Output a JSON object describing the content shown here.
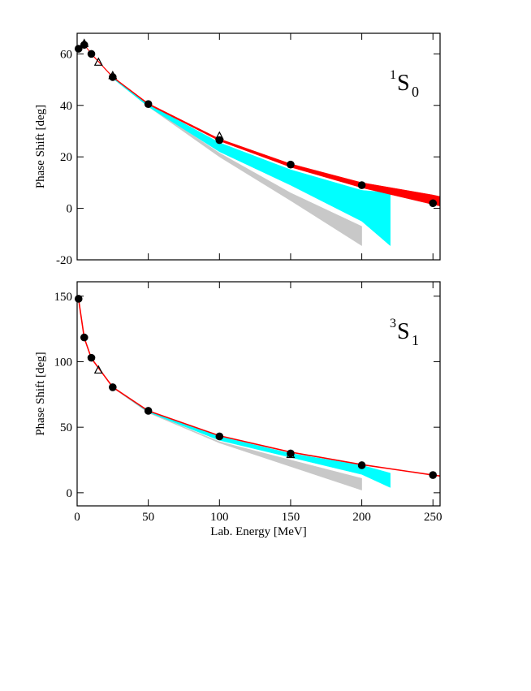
{
  "chart_data": [
    {
      "type": "line",
      "ylabel": "Phase Shift [deg]",
      "annotation_sup": "1",
      "annotation": "S",
      "annotation_sub": "0",
      "xlim": [
        0,
        255
      ],
      "xticks": [
        0,
        50,
        100,
        150,
        200,
        250
      ],
      "show_xtick_labels": false,
      "ylim": [
        -20,
        68
      ],
      "yticks": [
        -20,
        0,
        20,
        40,
        60
      ],
      "series": [
        {
          "kind": "band",
          "color": "#c8c8c8",
          "x": [
            25,
            50,
            100,
            150,
            200
          ],
          "upper": [
            51,
            40,
            21.5,
            6,
            -7
          ],
          "lower": [
            50.5,
            39.5,
            20,
            3,
            -14.5
          ]
        },
        {
          "kind": "band",
          "color": "#00ffff",
          "x": [
            25,
            50,
            100,
            150,
            200,
            220
          ],
          "upper": [
            51,
            40.5,
            25.5,
            15,
            7,
            6
          ],
          "lower": [
            50.5,
            39.5,
            22,
            9,
            -5,
            -14.5
          ]
        },
        {
          "kind": "band",
          "color": "#ff0000",
          "x": [
            1,
            5,
            10,
            25,
            50,
            100,
            150,
            200,
            250,
            255
          ],
          "upper": [
            62.2,
            63.7,
            60.2,
            51.2,
            40.8,
            27,
            17.3,
            10,
            5.2,
            4.6
          ],
          "lower": [
            62,
            63.5,
            59.8,
            50.8,
            40.3,
            26.2,
            16,
            8,
            1.5,
            0.9
          ]
        },
        {
          "kind": "scatter",
          "marker": "triangle",
          "color": "#000000",
          "x": [
            5,
            15,
            25,
            100
          ],
          "values": [
            64,
            56.7,
            51.5,
            28
          ]
        },
        {
          "kind": "scatter",
          "marker": "circle",
          "color": "#000000",
          "x": [
            1,
            5,
            10,
            25,
            50,
            100,
            150,
            200,
            250
          ],
          "values": [
            62,
            63.5,
            60,
            51,
            40.5,
            26.5,
            17,
            9,
            2
          ]
        }
      ]
    },
    {
      "type": "line",
      "ylabel": "Phase Shift [deg]",
      "xlabel": "Lab. Energy [MeV]",
      "annotation_sup": "3",
      "annotation": "S",
      "annotation_sub": "1",
      "xlim": [
        0,
        255
      ],
      "xticks": [
        0,
        50,
        100,
        150,
        200,
        250
      ],
      "show_xtick_labels": true,
      "ylim": [
        -10,
        161
      ],
      "yticks": [
        0,
        50,
        100,
        150
      ],
      "series": [
        {
          "kind": "band",
          "color": "#c8c8c8",
          "x": [
            25,
            50,
            100,
            150,
            200
          ],
          "upper": [
            80.5,
            61.5,
            39,
            25,
            11
          ],
          "lower": [
            80,
            61,
            38,
            20,
            2
          ]
        },
        {
          "kind": "band",
          "color": "#00ffff",
          "x": [
            25,
            50,
            100,
            150,
            200,
            220
          ],
          "upper": [
            80.6,
            62.5,
            43,
            30,
            21,
            15
          ],
          "lower": [
            80.4,
            61.5,
            40,
            27,
            14,
            4
          ]
        },
        {
          "kind": "line",
          "color": "#ff0000",
          "x": [
            1,
            5,
            10,
            25,
            50,
            100,
            150,
            200,
            250,
            255
          ],
          "values": [
            147.7,
            118.2,
            102.6,
            80.6,
            62.5,
            43.5,
            31,
            21.5,
            13.5,
            12.8
          ]
        },
        {
          "kind": "scatter",
          "marker": "triangle",
          "color": "#000000",
          "x": [
            15,
            150
          ],
          "values": [
            93.5,
            29
          ]
        },
        {
          "kind": "scatter",
          "marker": "circle",
          "color": "#000000",
          "x": [
            1,
            5,
            10,
            25,
            50,
            100,
            150,
            200,
            250
          ],
          "values": [
            148,
            118.5,
            103,
            80.5,
            62.5,
            43,
            30,
            21,
            13.5
          ]
        }
      ]
    }
  ]
}
